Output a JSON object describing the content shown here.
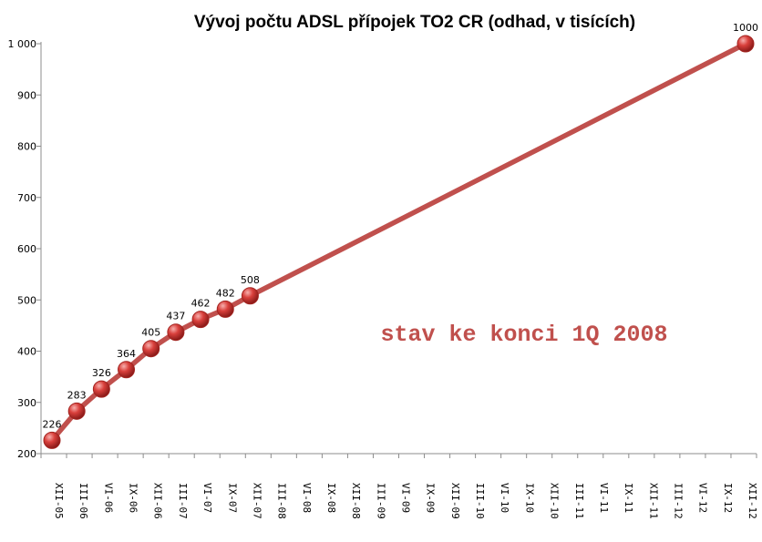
{
  "chart_data": {
    "type": "line",
    "title": "Vývoj počtu ADSL přípojek TO2 CR  (odhad, v tisících)",
    "xlabel": "",
    "ylabel": "",
    "categories": [
      "XII-05",
      "III-06",
      "VI-06",
      "IX-06",
      "XII-06",
      "III-07",
      "VI-07",
      "IX-07",
      "XII-07",
      "III-08",
      "VI-08",
      "IX-08",
      "XII-08",
      "III-09",
      "VI-09",
      "IX-09",
      "XII-09",
      "III-10",
      "VI-10",
      "IX-10",
      "XII-10",
      "III-11",
      "VI-11",
      "IX-11",
      "XII-11",
      "III-12",
      "VI-12",
      "IX-12",
      "XII-12"
    ],
    "ylim": [
      200,
      1000
    ],
    "yticks": [
      200,
      300,
      400,
      500,
      600,
      700,
      800,
      900,
      1000
    ],
    "ytick_labels": [
      "200",
      "300",
      "400",
      "500",
      "600",
      "700",
      "800",
      "900",
      "1 000"
    ],
    "series": [
      {
        "color": "#c0504d",
        "values": [
          226,
          283,
          326,
          364,
          405,
          437,
          462,
          482,
          508,
          null,
          null,
          null,
          null,
          null,
          null,
          null,
          null,
          null,
          null,
          null,
          null,
          null,
          null,
          null,
          null,
          null,
          null,
          null,
          1000
        ],
        "labels": [
          "226",
          "283",
          "326",
          "364",
          "405",
          "437",
          "462",
          "482",
          "508",
          "",
          "",
          "",
          "",
          "",
          "",
          "",
          "",
          "",
          "",
          "",
          "",
          "",
          "",
          "",
          "",
          "",
          "",
          "",
          "1000"
        ]
      }
    ],
    "annotations": [
      {
        "text": "stav ke konci 1Q 2008",
        "color": "#c0504d"
      }
    ],
    "grid": false,
    "legend": "none"
  }
}
